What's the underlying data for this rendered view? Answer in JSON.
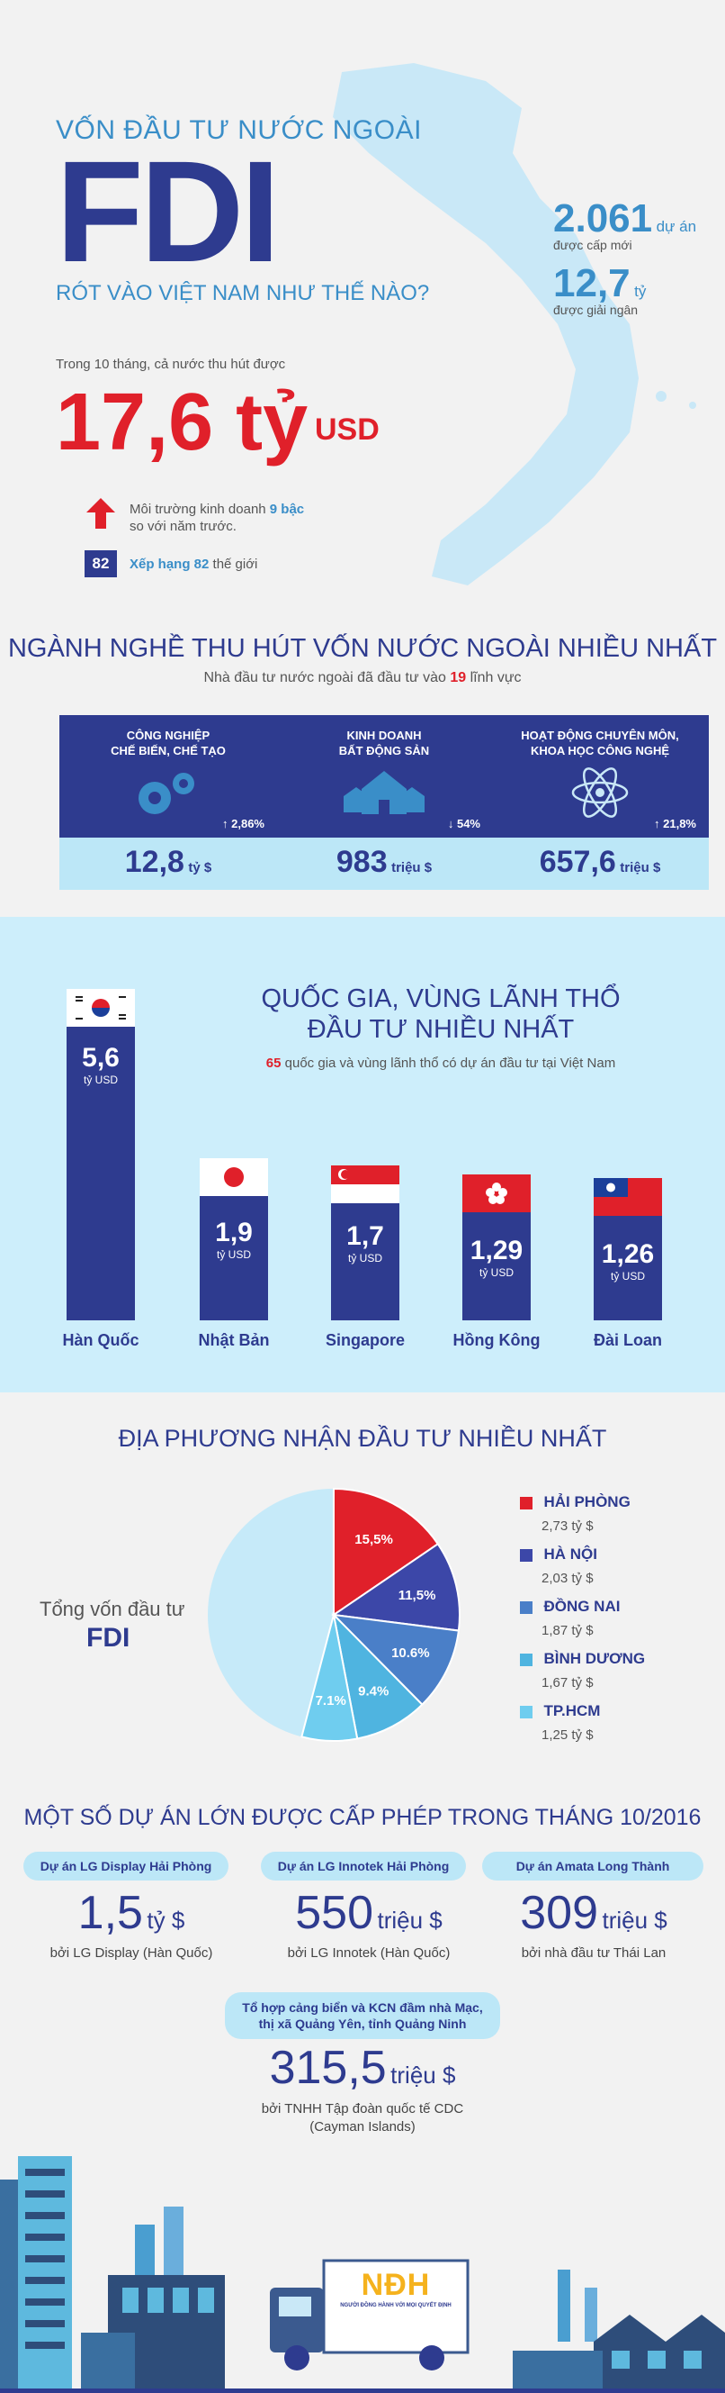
{
  "header": {
    "subtitle_top": "VỐN ĐẦU TƯ NƯỚC NGOÀI",
    "title": "FDI",
    "subtitle_bottom": "RÓT VÀO VIỆT NAM NHƯ THẾ NÀO?"
  },
  "stats": {
    "projects_num": "2.061",
    "projects_unit": "dự án",
    "projects_cap": "được cấp mới",
    "disbursed_num": "12,7",
    "disbursed_unit": "tỷ",
    "disbursed_cap": "được giải ngân"
  },
  "total": {
    "intro": "Trong 10 tháng, cả nước thu hút được",
    "value": "17,6 tỷ",
    "unit": "USD"
  },
  "ranking": {
    "env_text_a": "Môi trường kinh doanh ",
    "env_highlight": "9 bậc",
    "env_text_b": "so với năm trước.",
    "rank_badge": "82",
    "rank_highlight": "Xếp hạng 82",
    "rank_text": " thế giới"
  },
  "sectors": {
    "title": "NGÀNH NGHỀ THU HÚT VỐN NƯỚC NGOÀI NHIỀU NHẤT",
    "subtitle_a": "Nhà đầu tư nước ngoài đã đầu tư vào ",
    "subtitle_num": "19",
    "subtitle_b": " lĩnh vực",
    "items": [
      {
        "label1": "CÔNG NGHIỆP",
        "label2": "CHẾ BIẾN, CHẾ TẠO",
        "change": "↑ 2,86%",
        "value": "12,8",
        "unit": "tỷ $",
        "icon": "gears-icon"
      },
      {
        "label1": "KINH DOANH",
        "label2": "BẤT ĐỘNG SẢN",
        "change": "↓ 54%",
        "value": "983",
        "unit": "triệu $",
        "icon": "houses-icon"
      },
      {
        "label1": "HOẠT ĐỘNG CHUYÊN MÔN,",
        "label2": "KHOA HỌC CÔNG NGHỆ",
        "change": "↑ 21,8%",
        "value": "657,6",
        "unit": "triệu $",
        "icon": "atom-icon"
      }
    ]
  },
  "countries": {
    "title1": "QUỐC GIA, VÙNG LÃNH THỔ",
    "title2": "ĐẦU TƯ NHIỀU NHẤT",
    "sub_num": "65",
    "sub_text": " quốc gia và vùng lãnh thổ có dự án đầu tư tại Việt Nam",
    "items": [
      {
        "name": "Hàn Quốc",
        "value": "5,6",
        "amount": 5.6,
        "unit": "tỷ USD",
        "flag": "south-korea-flag-icon"
      },
      {
        "name": "Nhật Bản",
        "value": "1,9",
        "amount": 1.9,
        "unit": "tỷ USD",
        "flag": "japan-flag-icon"
      },
      {
        "name": "Singapore",
        "value": "1,7",
        "amount": 1.7,
        "unit": "tỷ USD",
        "flag": "singapore-flag-icon"
      },
      {
        "name": "Hồng Kông",
        "value": "1,29",
        "amount": 1.29,
        "unit": "tỷ USD",
        "flag": "hong-kong-flag-icon"
      },
      {
        "name": "Đài Loan",
        "value": "1,26",
        "amount": 1.26,
        "unit": "tỷ USD",
        "flag": "taiwan-flag-icon"
      }
    ]
  },
  "localities": {
    "title": "ĐỊA PHƯƠNG NHẬN ĐẦU TƯ NHIỀU NHẤT",
    "center_label": "Tổng vốn đầu tư",
    "center_title": "FDI",
    "items": [
      {
        "name": "HẢI PHÒNG",
        "amount": "2,73 tỷ $",
        "pct_label": "15,5%",
        "pct": 15.5,
        "color": "#e0202a"
      },
      {
        "name": "HÀ NỘI",
        "amount": "2,03 tỷ $",
        "pct_label": "11,5%",
        "pct": 11.5,
        "color": "#3c47a8"
      },
      {
        "name": "ĐỒNG NAI",
        "amount": "1,87 tỷ $",
        "pct_label": "10.6%",
        "pct": 10.6,
        "color": "#4a7fc8"
      },
      {
        "name": "BÌNH DƯƠNG",
        "amount": "1,67 tỷ $",
        "pct_label": "9.4%",
        "pct": 9.4,
        "color": "#4fb4e0"
      },
      {
        "name": "TP.HCM",
        "amount": "1,25 tỷ $",
        "pct_label": "7.1%",
        "pct": 7.1,
        "color": "#6fcdef"
      }
    ],
    "rest_color": "#c6eaf9"
  },
  "chart_data": {
    "type": "pie",
    "categories": [
      "HẢI PHÒNG",
      "HÀ NỘI",
      "ĐỒNG NAI",
      "BÌNH DƯƠNG",
      "TP.HCM"
    ],
    "values": [
      15.5,
      11.5,
      10.6,
      9.4,
      7.1
    ],
    "title": "ĐỊA PHƯƠNG NHẬN ĐẦU TƯ NHIỀU NHẤT",
    "legend": "right"
  },
  "projects": {
    "title": "MỘT SỐ DỰ ÁN LỚN ĐƯỢC CẤP PHÉP TRONG THÁNG 10/2016",
    "items": [
      {
        "label": "Dự án LG Display Hải Phòng",
        "value": "1,5",
        "unit": "tỷ $",
        "by": "bởi LG Display (Hàn Quốc)"
      },
      {
        "label": "Dự án LG Innotek Hải Phòng",
        "value": "550",
        "unit": "triệu $",
        "by": "bởi LG Innotek (Hàn Quốc)"
      },
      {
        "label": "Dự án Amata Long Thành",
        "value": "309",
        "unit": "triệu $",
        "by": "bởi nhà đầu tư Thái Lan"
      }
    ],
    "last": {
      "label1": "Tổ hợp cảng biển và KCN đầm nhà Mạc,",
      "label2": "thị xã Quảng Yên, tỉnh Quảng Ninh",
      "value": "315,5",
      "unit": "triệu $",
      "by1": "bởi TNHH Tập đoàn quốc tế CDC",
      "by2": "(Cayman Islands)"
    }
  },
  "footer": {
    "logo": "NĐH",
    "tagline": "NGƯỜI ĐỒNG HÀNH VỚI MỌI QUYẾT ĐỊNH"
  }
}
